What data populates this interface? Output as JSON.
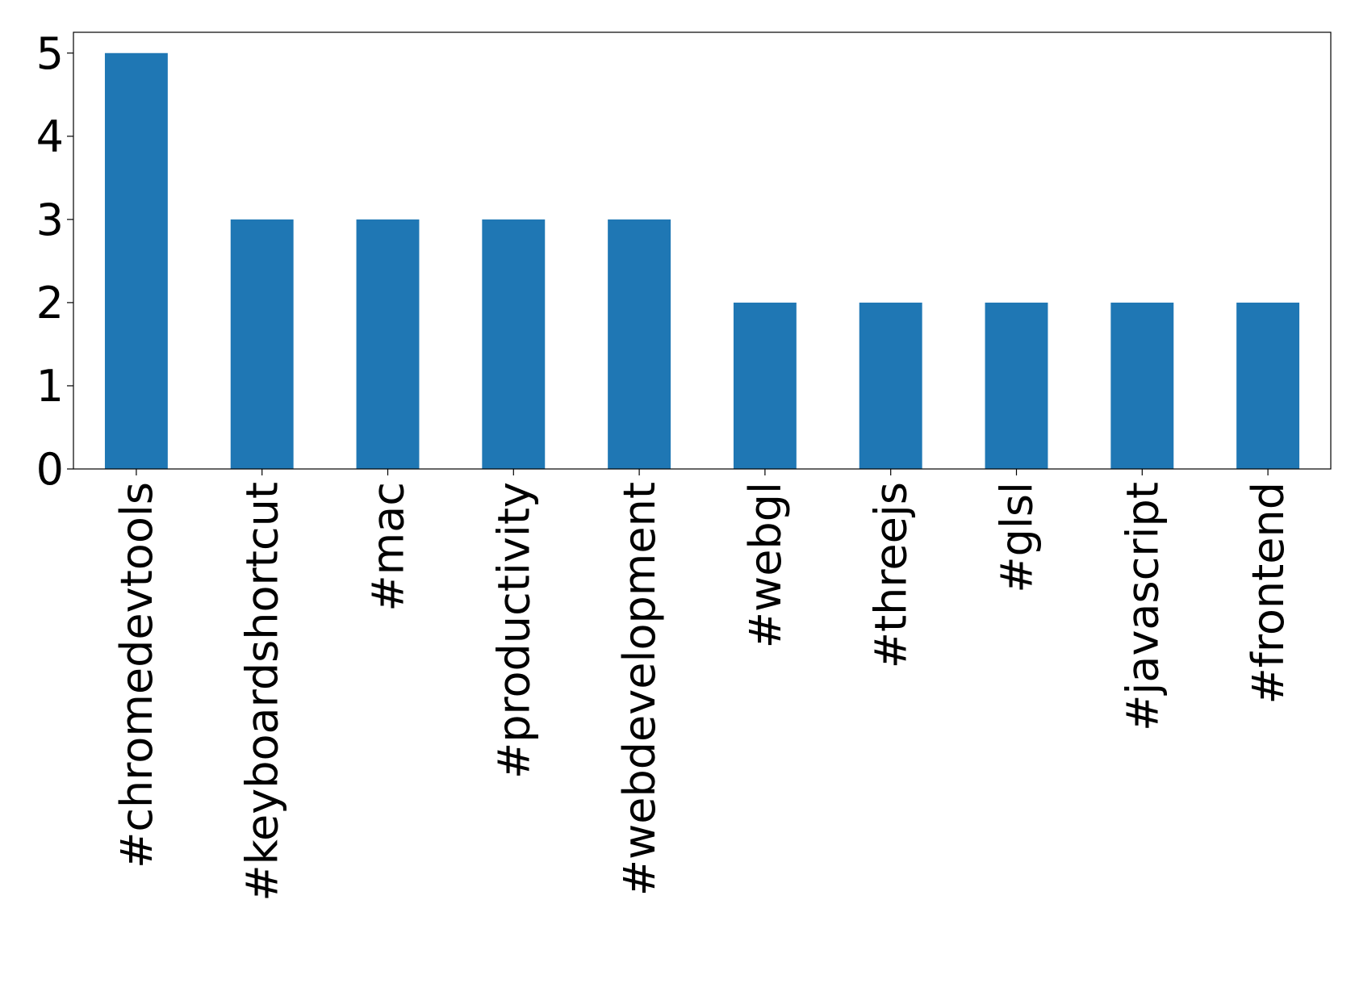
{
  "chart_data": {
    "type": "bar",
    "categories": [
      "#chromedevtools",
      "#keyboardshortcut",
      "#mac",
      "#productivity",
      "#webdevelopment",
      "#webgl",
      "#threejs",
      "#glsl",
      "#javascript",
      "#frontend"
    ],
    "values": [
      5,
      3,
      3,
      3,
      3,
      2,
      2,
      2,
      2,
      2
    ],
    "color": "#1f77b4",
    "ylim": [
      0,
      5.25
    ],
    "yticks": [
      0,
      1,
      2,
      3,
      4,
      5
    ],
    "grid": false
  }
}
